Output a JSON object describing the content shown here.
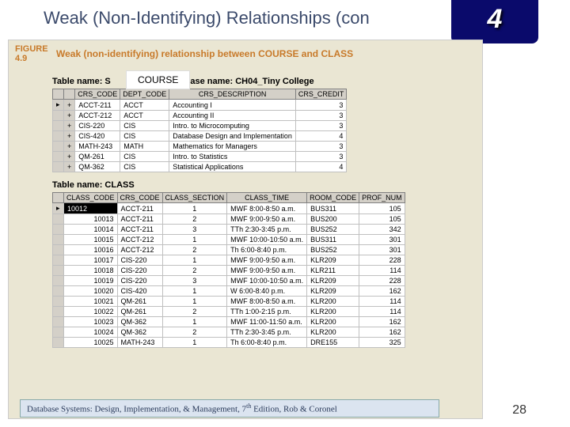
{
  "title": "Weak (Non-Identifying) Relationships (con",
  "chapter_badge": "4",
  "figure": {
    "label_top": "FIGURE",
    "label_num": "4.9",
    "caption": "Weak (non-identifying) relationship between COURSE and CLASS"
  },
  "white_label": "COURSE",
  "course_label_left": "Table name: S",
  "course_label_right": "Database name: CH04_Tiny College",
  "class_label": "Table name: CLASS",
  "course_table": {
    "columns": [
      "",
      "",
      "CRS_CODE",
      "DEPT_CODE",
      "CRS_DESCRIPTION",
      "CRS_CREDIT"
    ],
    "rows": [
      [
        "▸",
        "+",
        "ACCT-211",
        "ACCT",
        "Accounting I",
        "3"
      ],
      [
        "",
        "+",
        "ACCT-212",
        "ACCT",
        "Accounting II",
        "3"
      ],
      [
        "",
        "+",
        "CIS-220",
        "CIS",
        "Intro. to Microcomputing",
        "3"
      ],
      [
        "",
        "+",
        "CIS-420",
        "CIS",
        "Database Design and Implementation",
        "4"
      ],
      [
        "",
        "+",
        "MATH-243",
        "MATH",
        "Mathematics for Managers",
        "3"
      ],
      [
        "",
        "+",
        "QM-261",
        "CIS",
        "Intro. to Statistics",
        "3"
      ],
      [
        "",
        "+",
        "QM-362",
        "CIS",
        "Statistical Applications",
        "4"
      ]
    ]
  },
  "class_table": {
    "columns": [
      "",
      "CLASS_CODE",
      "CRS_CODE",
      "CLASS_SECTION",
      "CLASS_TIME",
      "ROOM_CODE",
      "PROF_NUM"
    ],
    "rows": [
      [
        "▸",
        "10012",
        "ACCT-211",
        "1",
        "MWF 8:00-8:50 a.m.",
        "BUS311",
        "105"
      ],
      [
        "",
        "10013",
        "ACCT-211",
        "2",
        "MWF 9:00-9:50 a.m.",
        "BUS200",
        "105"
      ],
      [
        "",
        "10014",
        "ACCT-211",
        "3",
        "TTh 2:30-3:45 p.m.",
        "BUS252",
        "342"
      ],
      [
        "",
        "10015",
        "ACCT-212",
        "1",
        "MWF 10:00-10:50 a.m.",
        "BUS311",
        "301"
      ],
      [
        "",
        "10016",
        "ACCT-212",
        "2",
        "Th 6:00-8:40 p.m.",
        "BUS252",
        "301"
      ],
      [
        "",
        "10017",
        "CIS-220",
        "1",
        "MWF 9:00-9:50 a.m.",
        "KLR209",
        "228"
      ],
      [
        "",
        "10018",
        "CIS-220",
        "2",
        "MWF 9:00-9:50 a.m.",
        "KLR211",
        "114"
      ],
      [
        "",
        "10019",
        "CIS-220",
        "3",
        "MWF 10:00-10:50 a.m.",
        "KLR209",
        "228"
      ],
      [
        "",
        "10020",
        "CIS-420",
        "1",
        "W 6:00-8:40 p.m.",
        "KLR209",
        "162"
      ],
      [
        "",
        "10021",
        "QM-261",
        "1",
        "MWF 8:00-8:50 a.m.",
        "KLR200",
        "114"
      ],
      [
        "",
        "10022",
        "QM-261",
        "2",
        "TTh 1:00-2:15 p.m.",
        "KLR200",
        "114"
      ],
      [
        "",
        "10023",
        "QM-362",
        "1",
        "MWF 11:00-11:50 a.m.",
        "KLR200",
        "162"
      ],
      [
        "",
        "10024",
        "QM-362",
        "2",
        "TTh 2:30-3:45 p.m.",
        "KLR200",
        "162"
      ],
      [
        "",
        "10025",
        "MATH-243",
        "1",
        "Th 6:00-8:40 p.m.",
        "DRE155",
        "325"
      ]
    ]
  },
  "footer": "Database Systems: Design, Implementation, & Management, 7",
  "footer_suffix": " Edition, Rob & Coronel",
  "footer_sup": "th",
  "page_num": "28"
}
